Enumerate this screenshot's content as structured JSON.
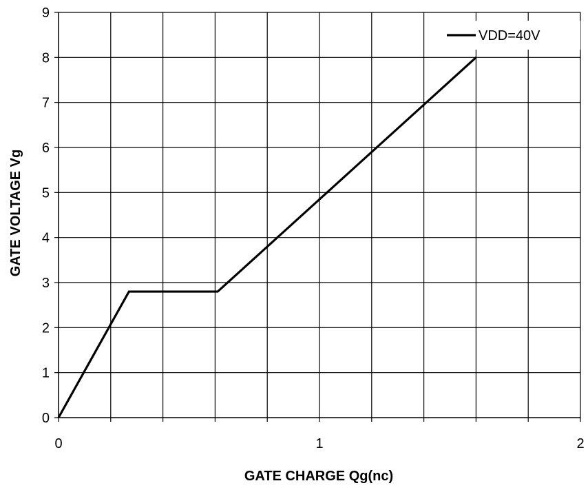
{
  "chart_data": {
    "type": "line",
    "title": "",
    "xlabel": "GATE CHARGE Qg(nc)",
    "ylabel": "GATE VOLTAGE Vg",
    "xlim": [
      0,
      2
    ],
    "ylim": [
      0,
      9
    ],
    "x_ticks": [
      "0",
      "1",
      "2"
    ],
    "y_ticks": [
      "0",
      "1",
      "2",
      "3",
      "4",
      "5",
      "6",
      "7",
      "8",
      "9"
    ],
    "x_minor_step": 0.2,
    "grid": true,
    "legend_position": "top-right",
    "series": [
      {
        "name": "VDD=40V",
        "color": "#000000",
        "x": [
          0,
          0.27,
          0.61,
          1.6
        ],
        "y": [
          0,
          2.8,
          2.8,
          8.0
        ]
      }
    ]
  }
}
